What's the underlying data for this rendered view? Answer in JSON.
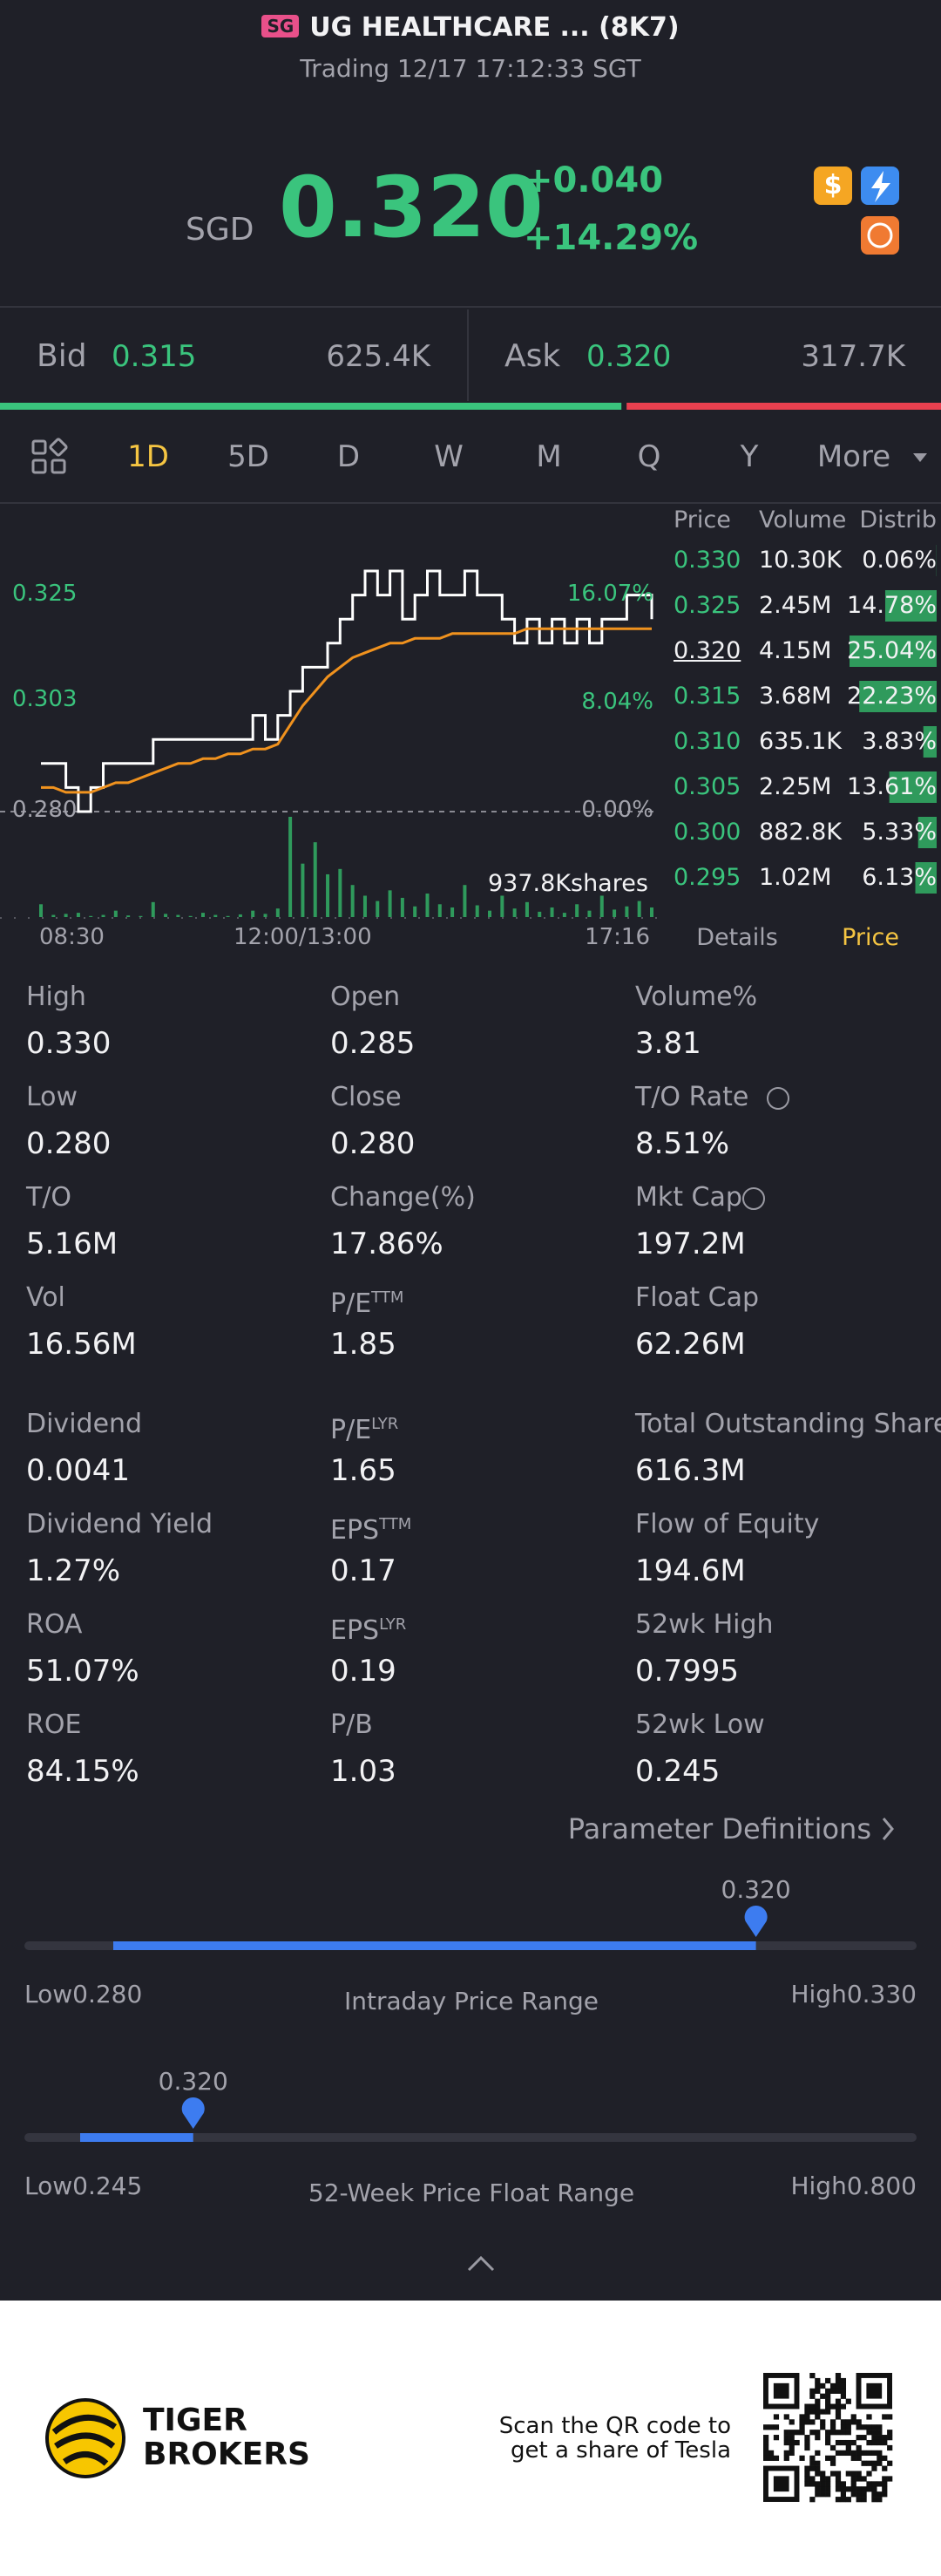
{
  "header": {
    "badge": "SG",
    "title": "UG HEALTHCARE ... (8K7)",
    "subtitle": "Trading 12/17 17:12:33 SGT"
  },
  "quote": {
    "currency": "SGD",
    "price": "0.320",
    "change": "+0.040",
    "change_pct": "+14.29%"
  },
  "bid_ask": {
    "bid_label": "Bid",
    "bid": "0.315",
    "bid_volume": "625.4K",
    "ask_label": "Ask",
    "ask": "0.320",
    "ask_volume": "317.7K"
  },
  "tabs": [
    "1D",
    "5D",
    "D",
    "W",
    "M",
    "Q",
    "Y",
    "More"
  ],
  "chart_data": {
    "type": "line",
    "x_labels": [
      "08:30",
      "12:00/13:00",
      "17:16"
    ],
    "series": [
      {
        "color": "#ffffff",
        "values": [
          0.29,
          0.29,
          0.285,
          0.28,
          0.285,
          0.29,
          0.29,
          0.29,
          0.29,
          0.295,
          0.295,
          0.295,
          0.295,
          0.295,
          0.295,
          0.295,
          0.295,
          0.3,
          0.295,
          0.3,
          0.305,
          0.31,
          0.31,
          0.315,
          0.32,
          0.325,
          0.33,
          0.325,
          0.33,
          0.32,
          0.325,
          0.33,
          0.325,
          0.325,
          0.33,
          0.325,
          0.325,
          0.32,
          0.315,
          0.32,
          0.315,
          0.32,
          0.315,
          0.32,
          0.315,
          0.32,
          0.32,
          0.325,
          0.325,
          0.32
        ]
      },
      {
        "color": "#f0921e",
        "values": [
          0.285,
          0.285,
          0.284,
          0.284,
          0.284,
          0.285,
          0.286,
          0.286,
          0.287,
          0.288,
          0.289,
          0.29,
          0.29,
          0.291,
          0.291,
          0.292,
          0.292,
          0.293,
          0.293,
          0.294,
          0.298,
          0.302,
          0.305,
          0.308,
          0.31,
          0.312,
          0.313,
          0.314,
          0.315,
          0.315,
          0.316,
          0.316,
          0.316,
          0.317,
          0.317,
          0.317,
          0.317,
          0.317,
          0.317,
          0.318,
          0.318,
          0.318,
          0.318,
          0.318,
          0.318,
          0.318,
          0.318,
          0.318,
          0.318,
          0.318
        ]
      }
    ],
    "ylim": [
      0.28,
      0.33
    ],
    "yticks": [
      {
        "value": 0.28,
        "label": "0.280"
      },
      0.303,
      0.325
    ],
    "y2lim": [
      0,
      17.86
    ],
    "y2ticks": [
      {
        "value": 0,
        "label": "0.00%"
      },
      {
        "value": 8.04,
        "label": "8.04%"
      },
      {
        "value": 16.07,
        "label": "16.07%"
      }
    ],
    "volume": {
      "color": "#2f9a5c",
      "values": [
        120,
        20,
        30,
        40,
        10,
        20,
        60,
        15,
        10,
        140,
        30,
        20,
        10,
        40,
        20,
        10,
        25,
        60,
        30,
        80,
        937.8,
        500,
        700,
        400,
        450,
        300,
        200,
        150,
        250,
        180,
        100,
        220,
        120,
        90,
        300,
        110,
        60,
        200,
        80,
        140,
        50,
        90,
        40,
        120,
        60,
        200,
        70,
        100,
        150,
        90
      ],
      "tick": {
        "value": 937.8,
        "label": "937.8Kshares"
      }
    }
  },
  "order_book": {
    "headers": [
      "Price",
      "Volume",
      "Distrib"
    ],
    "rows": [
      [
        "0.330",
        "10.30K",
        "0.06%"
      ],
      [
        "0.325",
        "2.45M",
        "14.78%"
      ],
      [
        "0.320",
        "4.15M",
        "25.04%"
      ],
      [
        "0.315",
        "3.68M",
        "22.23%"
      ],
      [
        "0.310",
        "635.1K",
        "3.83%"
      ],
      [
        "0.305",
        "2.25M",
        "13.61%"
      ],
      [
        "0.300",
        "882.8K",
        "5.33%"
      ],
      [
        "0.295",
        "1.02M",
        "6.13%"
      ]
    ]
  },
  "chart_tabs": [
    "Details",
    "Price"
  ],
  "stats": [
    [
      {
        "label": "High",
        "value": "0.330"
      },
      {
        "label": "Open",
        "value": "0.285"
      },
      {
        "label": "Volume%",
        "value": "3.81"
      }
    ],
    [
      {
        "label": "Low",
        "value": "0.280"
      },
      {
        "label": "Close",
        "value": "0.280"
      },
      {
        "label": "T/O Rate",
        "value": "8.51%"
      }
    ],
    [
      {
        "label": "T/O",
        "value": "5.16M"
      },
      {
        "label": "Change(%)",
        "value": "17.86%"
      },
      {
        "label": "Mkt Cap",
        "value": "197.2M"
      }
    ],
    [
      {
        "label": "Vol",
        "value": "16.56M"
      },
      {
        "label": "P/E",
        "sup": "TTM",
        "value": "1.85"
      },
      {
        "label": "Float Cap",
        "value": "62.26M"
      }
    ],
    [
      {
        "label": "Dividend",
        "value": "0.0041"
      },
      {
        "label": "P/E",
        "sup": "LYR",
        "value": "1.65"
      },
      {
        "label": "Total Outstanding Shares",
        "value": "616.3M"
      }
    ],
    [
      {
        "label": "Dividend Yield",
        "value": "1.27%"
      },
      {
        "label": "EPS",
        "sup": "TTM",
        "value": "0.17"
      },
      {
        "label": "Flow of Equity",
        "value": "194.6M"
      }
    ],
    [
      {
        "label": "ROA",
        "value": "51.07%"
      },
      {
        "label": "EPS",
        "sup": "LYR",
        "value": "0.19"
      },
      {
        "label": "52wk High",
        "value": "0.7995"
      }
    ],
    [
      {
        "label": "ROE",
        "value": "84.15%"
      },
      {
        "label": "P/B",
        "value": "1.03"
      },
      {
        "label": "52wk Low",
        "value": "0.245"
      }
    ]
  ],
  "parameter_definitions": "Parameter Definitions",
  "ranges": [
    {
      "title": "Intraday Price Range",
      "current": "0.320",
      "low_label": "Low",
      "low": "0.280",
      "high_label": "High",
      "high": "0.330"
    },
    {
      "title": "52-Week Price Float Range",
      "current": "0.320",
      "low_label": "Low",
      "low": "0.245",
      "high_label": "High",
      "high": "0.800"
    }
  ],
  "footer": {
    "brand": [
      "TIGER",
      "BROKERS"
    ],
    "promo": [
      "Scan the QR code to",
      "get a share of Tesla"
    ]
  }
}
